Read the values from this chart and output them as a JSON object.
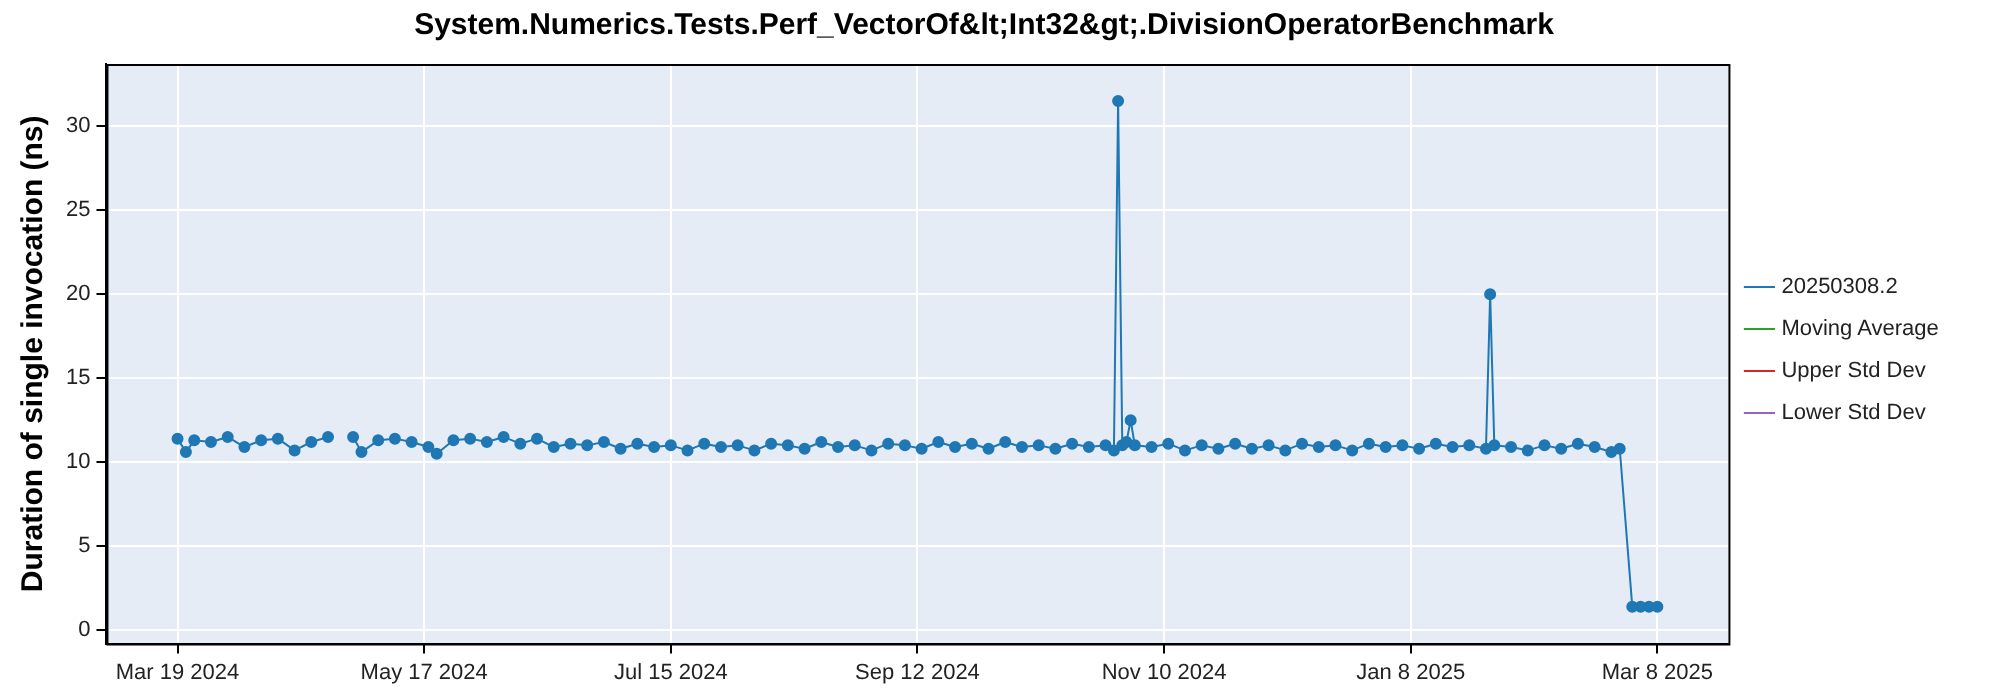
{
  "chart_data": {
    "type": "line",
    "title": "System.Numerics.Tests.Perf_VectorOf&lt;Int32&gt;.DivisionOperatorBenchmark",
    "ylabel": "Duration of single invocation (ns)",
    "xlim": [
      "2024-03-02",
      "2025-03-25"
    ],
    "ylim": [
      -0.8,
      33.7
    ],
    "xticks": [
      {
        "value": "2024-03-19",
        "label": "Mar 19 2024"
      },
      {
        "value": "2024-05-17",
        "label": "May 17 2024"
      },
      {
        "value": "2024-07-15",
        "label": "Jul 15 2024"
      },
      {
        "value": "2024-09-12",
        "label": "Sep 12 2024"
      },
      {
        "value": "2024-11-10",
        "label": "Nov 10 2024"
      },
      {
        "value": "2025-01-08",
        "label": "Jan 8 2025"
      },
      {
        "value": "2025-03-08",
        "label": "Mar 8 2025"
      }
    ],
    "yticks": [
      0,
      5,
      10,
      15,
      20,
      25,
      30
    ],
    "grid": true,
    "legend": "right",
    "marker": "circle",
    "line_style": "solid",
    "series": [
      {
        "name": "20250308.2",
        "color": "#1f77b4",
        "x": [
          "2024-03-19",
          "2024-03-21",
          "2024-03-23",
          "2024-03-27",
          "2024-03-31",
          "2024-04-04",
          "2024-04-08",
          "2024-04-12",
          "2024-04-16",
          "2024-04-20",
          "2024-04-24",
          "2024-04-27",
          "2024-04-30",
          "2024-05-02",
          "2024-05-06",
          "2024-05-10",
          "2024-05-14",
          "2024-05-18",
          "2024-05-20",
          "2024-05-24",
          "2024-05-28",
          "2024-06-01",
          "2024-06-05",
          "2024-06-09",
          "2024-06-13",
          "2024-06-17",
          "2024-06-21",
          "2024-06-25",
          "2024-06-29",
          "2024-07-03",
          "2024-07-07",
          "2024-07-11",
          "2024-07-15",
          "2024-07-19",
          "2024-07-23",
          "2024-07-27",
          "2024-07-31",
          "2024-08-04",
          "2024-08-08",
          "2024-08-12",
          "2024-08-16",
          "2024-08-20",
          "2024-08-24",
          "2024-08-28",
          "2024-09-01",
          "2024-09-05",
          "2024-09-09",
          "2024-09-13",
          "2024-09-17",
          "2024-09-21",
          "2024-09-25",
          "2024-09-29",
          "2024-10-03",
          "2024-10-07",
          "2024-10-11",
          "2024-10-15",
          "2024-10-19",
          "2024-10-23",
          "2024-10-27",
          "2024-10-29",
          "2024-10-30",
          "2024-10-31",
          "2024-11-01",
          "2024-11-02",
          "2024-11-03",
          "2024-11-07",
          "2024-11-11",
          "2024-11-15",
          "2024-11-19",
          "2024-11-23",
          "2024-11-27",
          "2024-12-01",
          "2024-12-05",
          "2024-12-09",
          "2024-12-13",
          "2024-12-17",
          "2024-12-21",
          "2024-12-25",
          "2024-12-29",
          "2025-01-02",
          "2025-01-06",
          "2025-01-10",
          "2025-01-14",
          "2025-01-18",
          "2025-01-22",
          "2025-01-26",
          "2025-01-27",
          "2025-01-28",
          "2025-02-01",
          "2025-02-05",
          "2025-02-09",
          "2025-02-13",
          "2025-02-17",
          "2025-02-21",
          "2025-02-25",
          "2025-02-27",
          "2025-03-02",
          "2025-03-04",
          "2025-03-06",
          "2025-03-08"
        ],
        "values": [
          11.4,
          10.6,
          11.3,
          11.2,
          11.5,
          10.9,
          11.3,
          11.4,
          10.7,
          11.2,
          11.5,
          null,
          11.5,
          10.6,
          11.3,
          11.4,
          11.2,
          10.9,
          10.5,
          11.3,
          11.4,
          11.2,
          11.5,
          11.1,
          11.4,
          10.9,
          11.1,
          11.0,
          11.2,
          10.8,
          11.1,
          10.9,
          11.0,
          10.7,
          11.1,
          10.9,
          11.0,
          10.7,
          11.1,
          11.0,
          10.8,
          11.2,
          10.9,
          11.0,
          10.7,
          11.1,
          11.0,
          10.8,
          11.2,
          10.9,
          11.1,
          10.8,
          11.2,
          10.9,
          11.0,
          10.8,
          11.1,
          10.9,
          11.0,
          10.7,
          31.5,
          11.0,
          11.2,
          12.5,
          11.0,
          10.9,
          11.1,
          10.7,
          11.0,
          10.8,
          11.1,
          10.8,
          11.0,
          10.7,
          11.1,
          10.9,
          11.0,
          10.7,
          11.1,
          10.9,
          11.0,
          10.8,
          11.1,
          10.9,
          11.0,
          10.8,
          20.0,
          11.0,
          10.9,
          10.7,
          11.0,
          10.8,
          11.1,
          10.9,
          10.6,
          10.8,
          1.4,
          1.4,
          1.4,
          1.4
        ]
      },
      {
        "name": "Moving Average",
        "color": "#2ca02c"
      },
      {
        "name": "Upper Std Dev",
        "color": "#d62728"
      },
      {
        "name": "Lower Std Dev",
        "color": "#9467bd"
      }
    ]
  }
}
